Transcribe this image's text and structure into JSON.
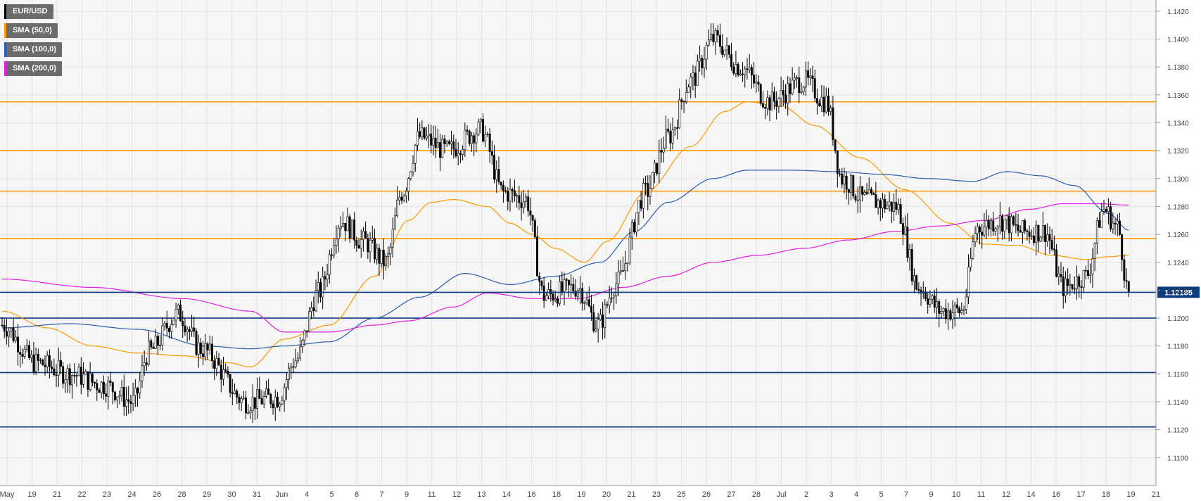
{
  "legend": {
    "symbol": "EUR/USD",
    "sma50": "SMA (50,0)",
    "sma100": "SMA (100,0)",
    "sma200": "SMA (200,0)"
  },
  "price_label": "1.12185",
  "colors": {
    "background": "#f6f6f6",
    "grid": "#e3e3e3",
    "candle_up": "#ffffff",
    "candle_down": "#000000",
    "sma50": "#ff9900",
    "sma100": "#2a5db0",
    "sma200": "#e51ee5",
    "resistance": "#ff9900",
    "support": "#0d3b80",
    "price_line": "#0d3b80",
    "price_tag": "#0d3b80"
  },
  "chart_data": {
    "type": "candlestick",
    "title": "",
    "ylim": [
      1.108,
      1.1428
    ],
    "yticks": [
      "1.1100",
      "1.1120",
      "1.1140",
      "1.1160",
      "1.1180",
      "1.1200",
      "1.1220",
      "1.1240",
      "1.1260",
      "1.1280",
      "1.1300",
      "1.1320",
      "1.1340",
      "1.1360",
      "1.1380",
      "1.1400",
      "1.1420"
    ],
    "xticks": [
      "May",
      "19",
      "21",
      "22",
      "23",
      "24",
      "26",
      "28",
      "29",
      "30",
      "31",
      "Jun",
      "4",
      "5",
      "6",
      "7",
      "9",
      "11",
      "12",
      "13",
      "14",
      "16",
      "18",
      "19",
      "20",
      "21",
      "23",
      "25",
      "26",
      "27",
      "28",
      "Jul",
      "2",
      "3",
      "4",
      "5",
      "7",
      "9",
      "10",
      "11",
      "12",
      "14",
      "16",
      "17",
      "18",
      "19",
      "21"
    ],
    "grid": true,
    "current_price": 1.12185,
    "resistance_levels": [
      1.1355,
      1.132,
      1.1291,
      1.1257
    ],
    "support_levels": [
      1.12,
      1.1161,
      1.1122
    ],
    "series_close_knots": [
      [
        0,
        1.1195
      ],
      [
        15,
        1.1168
      ],
      [
        30,
        1.116
      ],
      [
        45,
        1.1152
      ],
      [
        58,
        1.114
      ],
      [
        65,
        1.1176
      ],
      [
        78,
        1.1203
      ],
      [
        88,
        1.1178
      ],
      [
        108,
        1.114
      ],
      [
        122,
        1.1143
      ],
      [
        130,
        1.117
      ],
      [
        140,
        1.1218
      ],
      [
        150,
        1.127
      ],
      [
        160,
        1.1255
      ],
      [
        170,
        1.124
      ],
      [
        177,
        1.129
      ],
      [
        185,
        1.133
      ],
      [
        197,
        1.132
      ],
      [
        212,
        1.1335
      ],
      [
        222,
        1.129
      ],
      [
        232,
        1.1285
      ],
      [
        240,
        1.1216
      ],
      [
        255,
        1.1222
      ],
      [
        264,
        1.1195
      ],
      [
        272,
        1.1225
      ],
      [
        285,
        1.129
      ],
      [
        295,
        1.133
      ],
      [
        305,
        1.137
      ],
      [
        315,
        1.14
      ],
      [
        327,
        1.138
      ],
      [
        340,
        1.1355
      ],
      [
        355,
        1.137
      ],
      [
        365,
        1.1355
      ],
      [
        372,
        1.13
      ],
      [
        382,
        1.1285
      ],
      [
        396,
        1.128
      ],
      [
        406,
        1.1222
      ],
      [
        416,
        1.1205
      ],
      [
        425,
        1.1205
      ],
      [
        432,
        1.1265
      ],
      [
        442,
        1.127
      ],
      [
        452,
        1.1262
      ],
      [
        462,
        1.1262
      ],
      [
        470,
        1.1222
      ],
      [
        480,
        1.123
      ],
      [
        488,
        1.1278
      ],
      [
        494,
        1.1265
      ],
      [
        499,
        1.1218
      ]
    ],
    "sma50_knots": [
      [
        0,
        1.1205
      ],
      [
        20,
        1.1193
      ],
      [
        40,
        1.118
      ],
      [
        60,
        1.1175
      ],
      [
        80,
        1.1173
      ],
      [
        100,
        1.1168
      ],
      [
        110,
        1.1165
      ],
      [
        125,
        1.1185
      ],
      [
        145,
        1.1195
      ],
      [
        165,
        1.123
      ],
      [
        180,
        1.127
      ],
      [
        190,
        1.1283
      ],
      [
        200,
        1.1285
      ],
      [
        215,
        1.128
      ],
      [
        225,
        1.1268
      ],
      [
        235,
        1.126
      ],
      [
        245,
        1.125
      ],
      [
        258,
        1.124
      ],
      [
        268,
        1.1255
      ],
      [
        285,
        1.129
      ],
      [
        305,
        1.1323
      ],
      [
        320,
        1.1348
      ],
      [
        330,
        1.1355
      ],
      [
        345,
        1.1352
      ],
      [
        360,
        1.1338
      ],
      [
        380,
        1.1315
      ],
      [
        400,
        1.1292
      ],
      [
        420,
        1.1268
      ],
      [
        435,
        1.1253
      ],
      [
        450,
        1.1252
      ],
      [
        465,
        1.1245
      ],
      [
        480,
        1.1242
      ],
      [
        490,
        1.1244
      ],
      [
        499,
        1.1245
      ]
    ],
    "sma100_knots": [
      [
        0,
        1.1193
      ],
      [
        30,
        1.1196
      ],
      [
        60,
        1.1192
      ],
      [
        90,
        1.118
      ],
      [
        110,
        1.1178
      ],
      [
        125,
        1.118
      ],
      [
        145,
        1.1183
      ],
      [
        165,
        1.12
      ],
      [
        185,
        1.1215
      ],
      [
        205,
        1.1232
      ],
      [
        225,
        1.1224
      ],
      [
        245,
        1.123
      ],
      [
        265,
        1.124
      ],
      [
        280,
        1.1262
      ],
      [
        295,
        1.1283
      ],
      [
        315,
        1.13
      ],
      [
        330,
        1.1306
      ],
      [
        350,
        1.1306
      ],
      [
        370,
        1.1305
      ],
      [
        390,
        1.1303
      ],
      [
        410,
        1.13
      ],
      [
        430,
        1.1298
      ],
      [
        445,
        1.1305
      ],
      [
        460,
        1.1302
      ],
      [
        475,
        1.1295
      ],
      [
        490,
        1.1275
      ],
      [
        499,
        1.1263
      ]
    ],
    "sma200_knots": [
      [
        0,
        1.1228
      ],
      [
        40,
        1.1222
      ],
      [
        80,
        1.1214
      ],
      [
        110,
        1.1205
      ],
      [
        125,
        1.119
      ],
      [
        145,
        1.119
      ],
      [
        165,
        1.1195
      ],
      [
        180,
        1.1198
      ],
      [
        200,
        1.1208
      ],
      [
        215,
        1.1218
      ],
      [
        235,
        1.1214
      ],
      [
        255,
        1.1214
      ],
      [
        275,
        1.1222
      ],
      [
        295,
        1.123
      ],
      [
        315,
        1.124
      ],
      [
        335,
        1.1245
      ],
      [
        355,
        1.125
      ],
      [
        375,
        1.1256
      ],
      [
        395,
        1.1262
      ],
      [
        415,
        1.1266
      ],
      [
        435,
        1.127
      ],
      [
        455,
        1.1278
      ],
      [
        470,
        1.1282
      ],
      [
        485,
        1.1282
      ],
      [
        499,
        1.1281
      ]
    ],
    "candle_count": 500,
    "candle_seed": 7
  }
}
